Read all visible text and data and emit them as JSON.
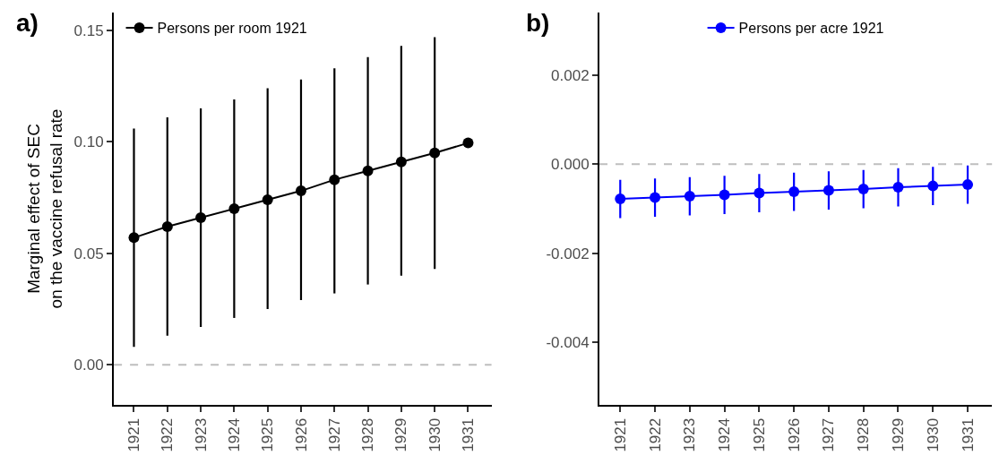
{
  "chart_data": [
    {
      "type": "line",
      "title": "a)",
      "ylabel": "Marginal effect of SEC\non the vaccine refusal rate",
      "categories": [
        "1921",
        "1922",
        "1923",
        "1924",
        "1925",
        "1926",
        "1927",
        "1928",
        "1929",
        "1930",
        "1931"
      ],
      "series": [
        {
          "name": "Persons per room 1921",
          "color": "#000000",
          "values": [
            0.057,
            0.062,
            0.066,
            0.07,
            0.074,
            0.078,
            0.083,
            0.087,
            0.091,
            0.095,
            0.0995
          ],
          "errors": [
            [
              0.008,
              0.106
            ],
            [
              0.013,
              0.111
            ],
            [
              0.017,
              0.115
            ],
            [
              0.021,
              0.119
            ],
            [
              0.025,
              0.124
            ],
            [
              0.029,
              0.128
            ],
            [
              0.032,
              0.133
            ],
            [
              0.036,
              0.138
            ],
            [
              0.04,
              0.143
            ],
            [
              0.043,
              0.147
            ],
            null
          ]
        }
      ],
      "ylim": [
        -0.018,
        0.158
      ],
      "yticks": [
        {
          "value": 0,
          "label": "0.00"
        },
        0.05,
        {
          "value": 0.1,
          "label": "0.10"
        },
        0.15
      ],
      "ref_lines": [
        {
          "axis": "y",
          "value": 0,
          "color": "#bebebe",
          "line_style": "dashed"
        }
      ],
      "marker": "circle",
      "legend": "top left",
      "grid": false
    },
    {
      "type": "line",
      "title": "b)",
      "categories": [
        "1921",
        "1922",
        "1923",
        "1924",
        "1925",
        "1926",
        "1927",
        "1928",
        "1929",
        "1930",
        "1931"
      ],
      "series": [
        {
          "name": "Persons per acre 1921",
          "color": "#0000ff",
          "values": [
            -0.00078,
            -0.00075,
            -0.00072,
            -0.00069,
            -0.00065,
            -0.00062,
            -0.00059,
            -0.00056,
            -0.00052,
            -0.00049,
            -0.00046
          ],
          "errors": [
            [
              -0.00121,
              -0.00035
            ],
            [
              -0.00118,
              -0.00032
            ],
            [
              -0.00115,
              -0.00029
            ],
            [
              -0.00112,
              -0.00026
            ],
            [
              -0.00108,
              -0.00022
            ],
            [
              -0.00105,
              -0.00019
            ],
            [
              -0.00102,
              -0.00016
            ],
            [
              -0.00099,
              -0.00013
            ],
            [
              -0.00095,
              -9e-05
            ],
            [
              -0.00092,
              -6e-05
            ],
            [
              -0.00089,
              -3e-05
            ]
          ]
        }
      ],
      "ylim": [
        -0.0054,
        0.0034
      ],
      "yticks": [
        {
          "value": -0.004,
          "label": "-0.004"
        },
        {
          "value": -0.002,
          "label": "-0.002"
        },
        {
          "value": 0,
          "label": "0.000"
        },
        0.002
      ],
      "ref_lines": [
        {
          "axis": "y",
          "value": 0,
          "color": "#bebebe",
          "line_style": "dashed"
        }
      ],
      "marker": "circle",
      "legend": "top",
      "grid": false
    }
  ]
}
